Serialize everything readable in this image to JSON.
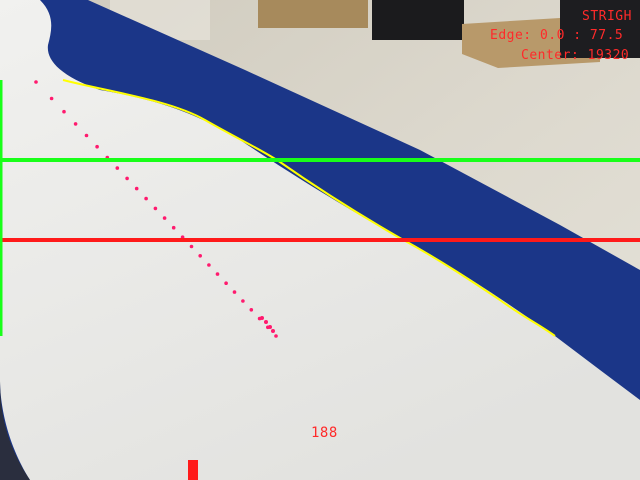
{
  "hud": {
    "mode": "STRIGH",
    "edge": "Edge: 0.0 : 77.5",
    "center": "Center: 19320",
    "value": "188"
  },
  "colors": {
    "guide_top": "#19ff19",
    "guide_mid": "#ff1a1a",
    "edge_trace": "#ffff00",
    "path_dots": "#ff1a6e",
    "text": "#ff2a2a",
    "mat_white": "#ececea",
    "mat_blue": "#1b3688",
    "floor": "#d8d4c8"
  }
}
